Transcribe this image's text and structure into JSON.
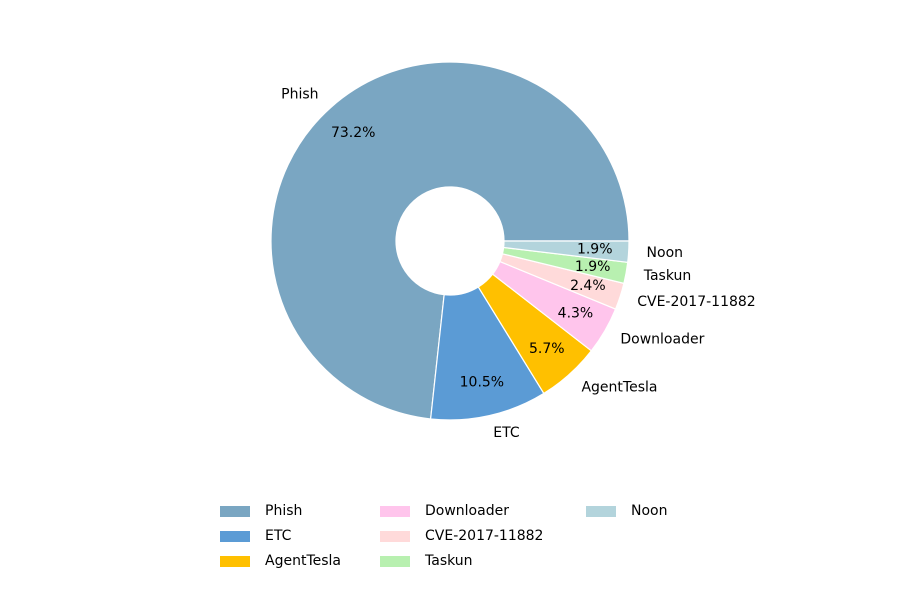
{
  "chart_data": {
    "type": "pie",
    "categories": [
      "Phish",
      "ETC",
      "AgentTesla",
      "Downloader",
      "CVE-2017-11882",
      "Taskun",
      "Noon"
    ],
    "values": [
      73.2,
      10.5,
      5.7,
      4.3,
      2.4,
      1.9,
      1.9
    ],
    "value_labels": [
      "73.2%",
      "10.5%",
      "5.7%",
      "4.3%",
      "2.4%",
      "1.9%",
      "1.9%"
    ],
    "colors": [
      "#7aa6c2",
      "#5b9bd5",
      "#ffc000",
      "#ffc5ec",
      "#ffdada",
      "#b8f0b0",
      "#b3d4dc"
    ],
    "legend": "lower center"
  }
}
